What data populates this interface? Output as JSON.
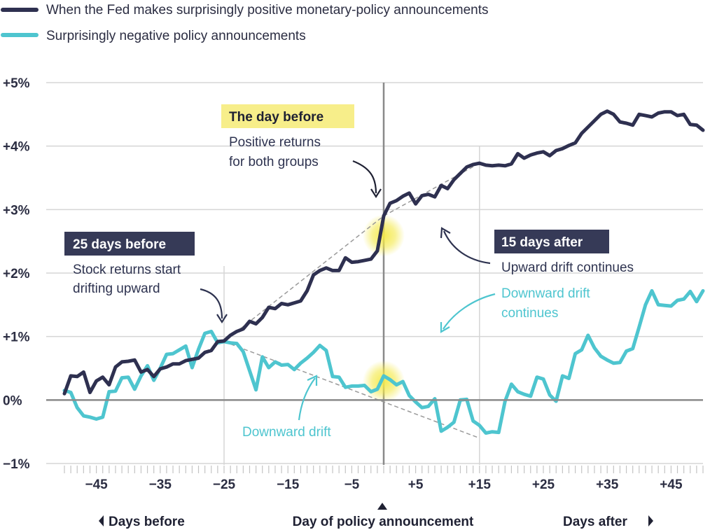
{
  "colors": {
    "positive": "#2e3050",
    "negative": "#4ec5cf",
    "axis": "#8a8a8a",
    "grid": "#d5d5d5",
    "highlight": "#f7ee8a",
    "badge": "#363a57",
    "glow": "#f4e94a"
  },
  "legend": {
    "positive_label": "When the Fed makes surprisingly positive monetary-policy announcements",
    "negative_label": "Surprisingly negative policy announcements"
  },
  "footer": {
    "days_before": "Days before",
    "day_of": "Day of policy announcement",
    "days_after": "Days after"
  },
  "annotations": {
    "day_before_title": "The day before",
    "day_before_line1": "Positive returns",
    "day_before_line2": "for both groups",
    "before25_title": "25 days before",
    "before25_line1": "Stock returns start",
    "before25_line2": "drifting upward",
    "after15_title": "15 days after",
    "after15_line1": "Upward drift continues",
    "down_after_line1": "Downward drift",
    "down_after_line2": "continues",
    "down_before": "Downward drift"
  },
  "chart_data": {
    "type": "line",
    "xlabel": "",
    "ylabel": "",
    "xlim": [
      -50,
      50
    ],
    "ylim": [
      -1,
      5
    ],
    "x_ticks": [
      -45,
      -35,
      -25,
      -15,
      -5,
      5,
      15,
      25,
      35,
      45
    ],
    "x_tick_labels": [
      "−45",
      "−35",
      "−25",
      "−15",
      "−5",
      "+5",
      "+15",
      "+25",
      "+35",
      "+45"
    ],
    "y_ticks": [
      -1,
      0,
      1,
      2,
      3,
      4,
      5
    ],
    "y_tick_labels": [
      "−1%",
      "0%",
      "+1%",
      "+2%",
      "+3%",
      "+4%",
      "+5%"
    ],
    "highlight_days": [
      -25,
      0,
      15
    ],
    "series": [
      {
        "name": "When the Fed makes surprisingly positive monetary-policy announcements",
        "x": [
          -50,
          -49,
          -48,
          -47,
          -46,
          -45,
          -44,
          -43,
          -42,
          -41,
          -40,
          -39,
          -38,
          -37,
          -36,
          -35,
          -34,
          -33,
          -32,
          -31,
          -30,
          -29,
          -28,
          -27,
          -26,
          -25,
          -24,
          -23,
          -22,
          -21,
          -20,
          -19,
          -18,
          -17,
          -16,
          -15,
          -14,
          -13,
          -12,
          -11,
          -10,
          -9,
          -8,
          -7,
          -6,
          -5,
          -4,
          -3,
          -2,
          -1,
          0,
          1,
          2,
          3,
          4,
          5,
          6,
          7,
          8,
          9,
          10,
          11,
          12,
          13,
          14,
          15,
          16,
          17,
          18,
          19,
          20,
          21,
          22,
          23,
          24,
          25,
          26,
          27,
          28,
          29,
          30,
          31,
          32,
          33,
          34,
          35,
          36,
          37,
          38,
          39,
          40,
          41,
          42,
          43,
          44,
          45,
          46,
          47,
          48,
          49,
          50
        ],
        "values": [
          0.1,
          0.38,
          0.37,
          0.44,
          0.12,
          0.3,
          0.36,
          0.24,
          0.52,
          0.6,
          0.61,
          0.63,
          0.44,
          0.48,
          0.37,
          0.49,
          0.52,
          0.57,
          0.57,
          0.62,
          0.64,
          0.66,
          0.75,
          0.78,
          0.92,
          0.93,
          1.02,
          1.08,
          1.12,
          1.24,
          1.2,
          1.3,
          1.46,
          1.44,
          1.52,
          1.5,
          1.53,
          1.56,
          1.72,
          1.97,
          2.04,
          2.08,
          2.04,
          2.04,
          2.24,
          2.17,
          2.18,
          2.2,
          2.22,
          2.35,
          2.9,
          3.1,
          3.14,
          3.21,
          3.26,
          3.09,
          3.22,
          3.24,
          3.2,
          3.38,
          3.33,
          3.47,
          3.57,
          3.67,
          3.71,
          3.73,
          3.7,
          3.69,
          3.7,
          3.69,
          3.72,
          3.88,
          3.81,
          3.86,
          3.89,
          3.91,
          3.85,
          3.93,
          3.96,
          4.01,
          4.05,
          4.2,
          4.3,
          4.4,
          4.5,
          4.55,
          4.5,
          4.38,
          4.36,
          4.33,
          4.5,
          4.48,
          4.46,
          4.52,
          4.54,
          4.54,
          4.48,
          4.5,
          4.34,
          4.33,
          4.25
        ]
      },
      {
        "name": "Surprisingly negative policy announcements",
        "x": [
          -50,
          -49,
          -48,
          -47,
          -46,
          -45,
          -44,
          -43,
          -42,
          -41,
          -40,
          -39,
          -38,
          -37,
          -36,
          -35,
          -34,
          -33,
          -32,
          -31,
          -30,
          -29,
          -28,
          -27,
          -26,
          -25,
          -24,
          -23,
          -22,
          -21,
          -20,
          -19,
          -18,
          -17,
          -16,
          -15,
          -14,
          -13,
          -12,
          -11,
          -10,
          -9,
          -8,
          -7,
          -6,
          -5,
          -4,
          -3,
          -2,
          -1,
          0,
          1,
          2,
          3,
          4,
          5,
          6,
          7,
          8,
          9,
          10,
          11,
          12,
          13,
          14,
          15,
          16,
          17,
          18,
          19,
          20,
          21,
          22,
          23,
          24,
          25,
          26,
          27,
          28,
          29,
          30,
          31,
          32,
          33,
          34,
          35,
          36,
          37,
          38,
          39,
          40,
          41,
          42,
          43,
          44,
          45,
          46,
          47,
          48,
          49,
          50
        ],
        "values": [
          0.15,
          0.12,
          -0.12,
          -0.25,
          -0.27,
          -0.3,
          -0.27,
          0.13,
          0.14,
          0.35,
          0.36,
          0.17,
          0.38,
          0.54,
          0.31,
          0.5,
          0.72,
          0.73,
          0.79,
          0.85,
          0.51,
          0.8,
          1.05,
          1.08,
          0.9,
          0.92,
          0.9,
          0.89,
          0.76,
          0.46,
          0.16,
          0.68,
          0.51,
          0.6,
          0.55,
          0.56,
          0.48,
          0.58,
          0.66,
          0.75,
          0.86,
          0.78,
          0.37,
          0.36,
          0.2,
          0.22,
          0.22,
          0.23,
          0.13,
          0.17,
          0.38,
          0.32,
          0.24,
          0.29,
          0.07,
          -0.03,
          -0.12,
          -0.1,
          0.02,
          -0.49,
          -0.43,
          -0.35,
          0.0,
          0.01,
          -0.33,
          -0.4,
          -0.52,
          -0.5,
          -0.51,
          -0.02,
          0.25,
          0.13,
          0.09,
          0.06,
          0.36,
          0.33,
          0.08,
          -0.02,
          0.38,
          0.34,
          0.73,
          0.79,
          1.02,
          0.82,
          0.69,
          0.63,
          0.58,
          0.59,
          0.77,
          0.81,
          1.15,
          1.5,
          1.72,
          1.5,
          1.49,
          1.48,
          1.57,
          1.59,
          1.71,
          1.55,
          1.72
        ]
      }
    ],
    "trendlines": [
      {
        "from": [
          -25,
          0.92
        ],
        "to": [
          0,
          2.9
        ]
      },
      {
        "from": [
          0,
          2.9
        ],
        "to": [
          15,
          3.73
        ]
      },
      {
        "from": [
          -25,
          0.92
        ],
        "to": [
          15,
          -0.6
        ]
      }
    ]
  }
}
